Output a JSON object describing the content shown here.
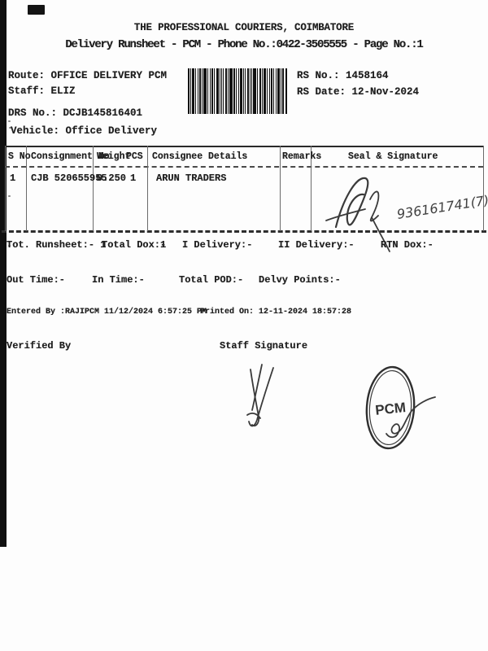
{
  "header": {
    "title": "THE PROFESSIONAL COURIERS, COIMBATORE",
    "subtitle": "Delivery Runsheet - PCM - Phone No.:0422-3505555 - Page No.:1"
  },
  "meta": {
    "route": {
      "label": "Route:",
      "value": "OFFICE DELIVERY PCM"
    },
    "staff": {
      "label": "Staff:",
      "value": "ELIZ"
    },
    "rs_no": {
      "label": "RS No.:",
      "value": "1458164"
    },
    "rs_date": {
      "label": "RS Date:",
      "value": "12-Nov-2024"
    },
    "drs_no": {
      "label": "DRS No.:",
      "value": "DCJB145816401"
    },
    "vehicle": {
      "label": "Vehicle:",
      "value": "Office Delivery"
    }
  },
  "table": {
    "headers": [
      "S No",
      "Consignment No",
      "Weight",
      "PCS",
      "Consignee Details",
      "Remarks",
      "Seal & Signature"
    ],
    "rows": [
      {
        "s_no": "1",
        "consignment_no": "CJB 520655955",
        "weight": "0.250",
        "pcs": "1",
        "consignee": "ARUN TRADERS",
        "remarks": "",
        "seal_number": "936161741(7)"
      }
    ]
  },
  "summary": {
    "tot_runsheet_label": "Tot. Runsheet:-",
    "tot_runsheet_value": "1",
    "total_dox_label": "Total Dox:-",
    "total_dox_value": "1",
    "i_delivery_label": "I Delivery:-",
    "ii_delivery_label": "II Delivery:-",
    "rtn_dox_label": "RTN Dox:-"
  },
  "times": {
    "out_time_label": "Out Time:-",
    "in_time_label": "In Time:-",
    "total_pod_label": "Total POD:-",
    "delvy_points_label": "Delvy Points:-"
  },
  "footer": {
    "entered_by": "Entered By :RAJIPCM 11/12/2024 6:57:25 PM",
    "printed_on": "Printed On: 12-11-2024 18:57:28",
    "verified_by": "Verified By",
    "staff_signature": "Staff Signature"
  },
  "stamp": {
    "text": "PCM"
  },
  "colors": {
    "ink": "#1f1f1f",
    "stamp_ink": "#333333",
    "artifact": "#101010"
  }
}
